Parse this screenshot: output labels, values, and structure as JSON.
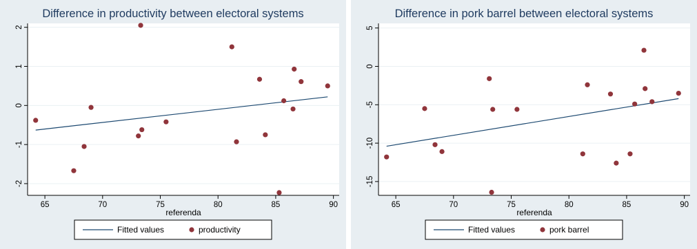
{
  "chart_data": [
    {
      "type": "scatter",
      "title": "Difference in productivity between electoral systems",
      "xlabel": "referenda",
      "ylabel": "",
      "xlim": [
        63.5,
        90.5
      ],
      "ylim": [
        -2.3,
        2.1
      ],
      "xticks": [
        65,
        70,
        75,
        80,
        85,
        90
      ],
      "yticks": [
        -2,
        -1,
        0,
        1,
        2
      ],
      "grid": true,
      "legend_position": "bottom",
      "series": [
        {
          "name": "Fitted values",
          "kind": "line",
          "color": "#1a476f",
          "x": [
            64.2,
            89.5
          ],
          "y": [
            -0.63,
            0.22
          ]
        },
        {
          "name": "productivity",
          "kind": "scatter",
          "color": "#90353b",
          "x": [
            64.2,
            67.5,
            68.4,
            69.0,
            73.1,
            73.3,
            73.4,
            75.5,
            81.2,
            81.6,
            83.6,
            84.1,
            85.3,
            85.7,
            86.5,
            86.6,
            87.2,
            89.5
          ],
          "y": [
            -0.38,
            -1.67,
            -1.05,
            -0.05,
            -0.78,
            2.05,
            -0.62,
            -0.42,
            1.5,
            -0.93,
            0.67,
            -0.75,
            -2.23,
            0.12,
            -0.09,
            0.93,
            0.61,
            0.5
          ]
        }
      ]
    },
    {
      "type": "scatter",
      "title": "Difference in pork barrel between electoral systems",
      "xlabel": "referenda",
      "ylabel": "",
      "xlim": [
        63.5,
        90.5
      ],
      "ylim": [
        -16.8,
        5.6
      ],
      "xticks": [
        65,
        70,
        75,
        80,
        85,
        90
      ],
      "yticks": [
        -15,
        -10,
        -5,
        0,
        5
      ],
      "grid": true,
      "legend_position": "bottom",
      "series": [
        {
          "name": "Fitted values",
          "kind": "line",
          "color": "#1a476f",
          "x": [
            64.2,
            89.5
          ],
          "y": [
            -10.4,
            -4.2
          ]
        },
        {
          "name": "pork barrel",
          "kind": "scatter",
          "color": "#90353b",
          "x": [
            64.2,
            67.5,
            68.4,
            69.0,
            73.1,
            73.3,
            73.4,
            75.5,
            81.2,
            81.6,
            83.6,
            84.1,
            85.3,
            85.7,
            86.5,
            86.6,
            87.2,
            89.5
          ],
          "y": [
            -11.8,
            -5.5,
            -10.2,
            -11.1,
            -1.6,
            -16.4,
            -5.6,
            -5.6,
            -11.4,
            -2.4,
            -3.6,
            -12.6,
            -11.4,
            -4.9,
            2.1,
            -2.9,
            -4.6,
            -3.5
          ]
        }
      ]
    }
  ]
}
